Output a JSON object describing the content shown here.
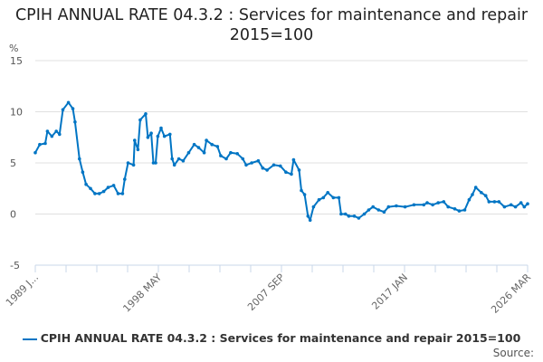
{
  "chart_data": {
    "type": "line",
    "title": "CPIH ANNUAL RATE 04.3.2 : Services for maintenance and repair 2015=100",
    "ylabel": "%",
    "ylim": [
      -5,
      15
    ],
    "yticks": [
      "15",
      "10",
      "5",
      "0",
      "-5"
    ],
    "xlim": [
      "1989-01",
      "2026-03"
    ],
    "xtick_labels": [
      "1989 J...",
      "1998 MAY",
      "2007 SEP",
      "2017 JAN",
      "2026 MAR"
    ],
    "grid": "horizontal",
    "legend_position": "bottom",
    "series": [
      {
        "name": "CPIH ANNUAL RATE 04.3.2 : Services for maintenance and repair 2015=100",
        "color": "#0075c4",
        "points": [
          [
            "1989-01",
            6.0
          ],
          [
            "1989-05",
            6.8
          ],
          [
            "1989-10",
            6.9
          ],
          [
            "1989-12",
            8.1
          ],
          [
            "1990-04",
            7.6
          ],
          [
            "1990-08",
            8.1
          ],
          [
            "1990-11",
            7.8
          ],
          [
            "1991-02",
            10.2
          ],
          [
            "1991-07",
            10.9
          ],
          [
            "1991-11",
            10.3
          ],
          [
            "1992-01",
            9.0
          ],
          [
            "1992-05",
            5.4
          ],
          [
            "1992-08",
            4.1
          ],
          [
            "1992-11",
            2.9
          ],
          [
            "1993-03",
            2.5
          ],
          [
            "1993-07",
            2.0
          ],
          [
            "1993-11",
            2.0
          ],
          [
            "1994-03",
            2.2
          ],
          [
            "1994-07",
            2.6
          ],
          [
            "1994-12",
            2.8
          ],
          [
            "1995-04",
            2.0
          ],
          [
            "1995-08",
            2.0
          ],
          [
            "1995-10",
            3.4
          ],
          [
            "1996-01",
            5.0
          ],
          [
            "1996-06",
            4.8
          ],
          [
            "1996-07",
            7.2
          ],
          [
            "1996-10",
            6.3
          ],
          [
            "1996-12",
            9.2
          ],
          [
            "1997-05",
            9.8
          ],
          [
            "1997-07",
            7.5
          ],
          [
            "1997-10",
            7.9
          ],
          [
            "1997-12",
            5.0
          ],
          [
            "1998-02",
            5.0
          ],
          [
            "1998-04",
            7.6
          ],
          [
            "1998-07",
            8.4
          ],
          [
            "1998-10",
            7.6
          ],
          [
            "1999-03",
            7.8
          ],
          [
            "1999-05",
            5.4
          ],
          [
            "1999-07",
            4.8
          ],
          [
            "1999-11",
            5.4
          ],
          [
            "2000-03",
            5.2
          ],
          [
            "2000-08",
            6.0
          ],
          [
            "2001-01",
            6.8
          ],
          [
            "2001-05",
            6.5
          ],
          [
            "2001-10",
            6.0
          ],
          [
            "2001-12",
            7.2
          ],
          [
            "2002-05",
            6.8
          ],
          [
            "2002-10",
            6.6
          ],
          [
            "2003-01",
            5.7
          ],
          [
            "2003-06",
            5.4
          ],
          [
            "2003-10",
            6.0
          ],
          [
            "2004-04",
            5.9
          ],
          [
            "2004-09",
            5.4
          ],
          [
            "2004-12",
            4.8
          ],
          [
            "2005-05",
            5.0
          ],
          [
            "2005-11",
            5.2
          ],
          [
            "2006-03",
            4.5
          ],
          [
            "2006-07",
            4.3
          ],
          [
            "2007-01",
            4.8
          ],
          [
            "2007-07",
            4.7
          ],
          [
            "2007-12",
            4.1
          ],
          [
            "2008-05",
            3.9
          ],
          [
            "2008-07",
            5.3
          ],
          [
            "2008-12",
            4.3
          ],
          [
            "2009-02",
            2.3
          ],
          [
            "2009-05",
            1.9
          ],
          [
            "2009-08",
            -0.2
          ],
          [
            "2009-10",
            -0.6
          ],
          [
            "2010-01",
            0.7
          ],
          [
            "2010-06",
            1.4
          ],
          [
            "2010-10",
            1.6
          ],
          [
            "2011-02",
            2.1
          ],
          [
            "2011-07",
            1.6
          ],
          [
            "2011-12",
            1.6
          ],
          [
            "2012-02",
            0.0
          ],
          [
            "2012-06",
            0.0
          ],
          [
            "2012-09",
            -0.2
          ],
          [
            "2013-02",
            -0.2
          ],
          [
            "2013-06",
            -0.4
          ],
          [
            "2013-11",
            0.0
          ],
          [
            "2014-03",
            0.4
          ],
          [
            "2014-07",
            0.7
          ],
          [
            "2014-12",
            0.4
          ],
          [
            "2015-05",
            0.2
          ],
          [
            "2015-09",
            0.7
          ],
          [
            "2016-04",
            0.8
          ],
          [
            "2016-12",
            0.7
          ],
          [
            "2017-08",
            0.9
          ],
          [
            "2018-05",
            0.9
          ],
          [
            "2018-08",
            1.1
          ],
          [
            "2019-01",
            0.9
          ],
          [
            "2019-06",
            1.1
          ],
          [
            "2019-11",
            1.2
          ],
          [
            "2020-03",
            0.7
          ],
          [
            "2020-09",
            0.5
          ],
          [
            "2021-01",
            0.3
          ],
          [
            "2021-06",
            0.4
          ],
          [
            "2021-10",
            1.4
          ],
          [
            "2022-01",
            1.9
          ],
          [
            "2022-04",
            2.6
          ],
          [
            "2022-09",
            2.1
          ],
          [
            "2023-01",
            1.8
          ],
          [
            "2023-04",
            1.2
          ],
          [
            "2023-09",
            1.2
          ],
          [
            "2024-01",
            1.2
          ],
          [
            "2024-06",
            0.7
          ],
          [
            "2024-12",
            0.9
          ],
          [
            "2025-04",
            0.7
          ],
          [
            "2025-09",
            1.1
          ],
          [
            "2025-12",
            0.7
          ],
          [
            "2026-03",
            1.0
          ]
        ]
      }
    ]
  },
  "source_label": "Source:"
}
